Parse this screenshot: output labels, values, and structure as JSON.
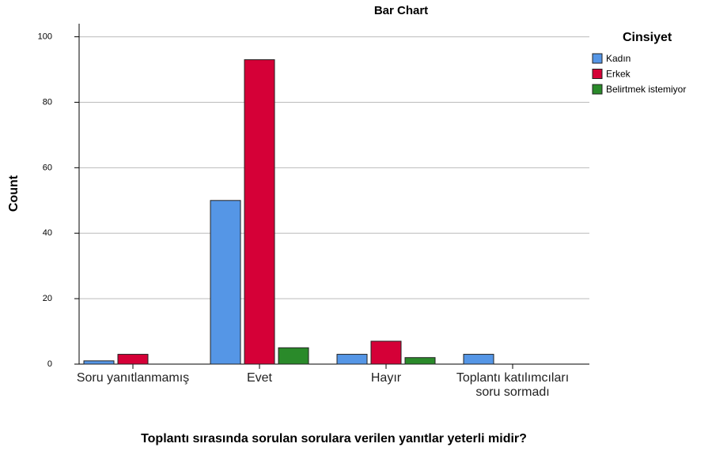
{
  "chart_data": {
    "type": "bar",
    "title": "Bar Chart",
    "x_label": "Toplantı sırasında sorulan sorulara verilen yanıtlar yeterli midir?",
    "y_label": "Count",
    "categories": [
      "Soru yanıtlanmamış",
      "Evet",
      "Hayır",
      "Toplantı katılımcıları soru sormadı"
    ],
    "series": [
      {
        "name": "Kadın",
        "color": "#5596e6",
        "values": [
          1,
          50,
          3,
          3
        ]
      },
      {
        "name": "Erkek",
        "color": "#d50037",
        "values": [
          3,
          93,
          7,
          0
        ]
      },
      {
        "name": "Belirtmek istemiyor",
        "color": "#2a8a2a",
        "values": [
          0,
          5,
          2,
          0
        ]
      }
    ],
    "legend_title": "Cinsiyet",
    "legend": "right",
    "ylim": [
      0,
      104
    ],
    "yticks": [
      0,
      20,
      40,
      60,
      80,
      100
    ],
    "grid": true
  }
}
